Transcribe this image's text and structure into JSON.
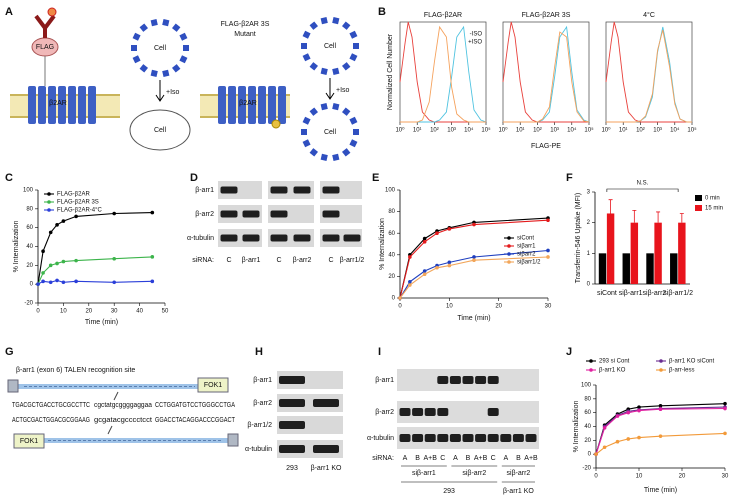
{
  "panel_labels": [
    "A",
    "B",
    "C",
    "D",
    "E",
    "F",
    "G",
    "H",
    "I",
    "J"
  ],
  "diagram_a": {
    "flag": "FLAG",
    "receptor": "β2AR",
    "cell_1": "Cell",
    "iso_1": "+Iso",
    "cell_2": "Cell",
    "mutant_title": [
      "FLAG-β2AR 3S",
      "Mutant"
    ],
    "mutant_receptor": "β2AR",
    "cell_3": "Cell",
    "iso_2": "+Iso",
    "cell_4": "Cell"
  },
  "blot_d": {
    "rows": [
      "β-arr1",
      "β-arr2",
      "α-tubulin"
    ],
    "sirna": "siRNA:",
    "lanes": [
      "C",
      "β-arr1",
      "C",
      "β-arr2",
      "C",
      "β-arr1/2"
    ]
  },
  "diagram_g": {
    "title": "β-arr1 (exon 6) TALEN recognition site",
    "top_strand": [
      "TGACGCTGACCTGCGCCTTC",
      "cgctatgcggggaggaa",
      "CCTGGATGTCCTGGGCCTGA"
    ],
    "bottom_strand": [
      "ACTGCGACTGGACGCGGAAG",
      "gcgatacgcccctcct",
      "GGACCTACAGGACCCGGACT"
    ],
    "nuclease": [
      "FOK1",
      "FOK1"
    ]
  },
  "blot_h": {
    "rows": [
      "β-arr1",
      "β-arr2",
      "β-arr1/2",
      "α-tubulin"
    ],
    "lanes": [
      "293",
      "β-arr1 KO"
    ]
  },
  "blot_i": {
    "rows": [
      "β-arr1",
      "β-arr2",
      "α-tubulin"
    ],
    "sirna": "siRNA:",
    "lanes": [
      "A",
      "B",
      "A+B",
      "C",
      "A",
      "B",
      "A+B",
      "C",
      "A",
      "B",
      "A+B"
    ],
    "groups": [
      "siβ-arr1",
      "siβ-arr2",
      "siβ-arr2"
    ],
    "cells": [
      "293",
      "β-arr1 KO"
    ]
  },
  "chart_data": [
    {
      "type": "line",
      "title": "FLAG-β2AR",
      "ylabel": "Normalized Cell Number",
      "xlog": true,
      "frame": true,
      "legend": "upper right",
      "x": [
        1,
        2,
        3,
        5,
        10,
        20,
        50,
        100,
        200,
        500,
        1000,
        2000,
        5000,
        10000,
        20000,
        50000,
        100000
      ],
      "xlim": [
        1,
        100000
      ],
      "ylim": [
        0,
        100
      ],
      "xticks": [
        {
          "value": 1,
          "label": "10⁰"
        },
        {
          "value": 10,
          "label": "10¹"
        },
        {
          "value": 100,
          "label": "10²"
        },
        {
          "value": 1000,
          "label": "10³"
        },
        {
          "value": 10000,
          "label": "10⁴"
        },
        {
          "value": 100000,
          "label": "10⁵"
        }
      ],
      "series": [
        {
          "color": "#e8413c",
          "values": [
            40,
            80,
            100,
            85,
            40,
            10,
            2,
            0,
            0,
            0,
            0,
            0,
            0,
            0,
            0,
            0,
            0
          ]
        },
        {
          "name": "-ISO",
          "color": "#4fc3e0",
          "values": [
            0,
            0,
            0,
            0,
            0,
            0,
            0,
            0,
            2,
            10,
            45,
            85,
            95,
            50,
            12,
            2,
            0
          ]
        },
        {
          "name": "+ISO",
          "color": "#f5a25d",
          "values": [
            0,
            0,
            0,
            0,
            0,
            2,
            20,
            60,
            95,
            85,
            35,
            8,
            2,
            0,
            0,
            0,
            0
          ]
        }
      ]
    },
    {
      "type": "line",
      "title": "FLAG-β2AR 3S",
      "xlabel": "FLAG-PE",
      "xlog": true,
      "frame": true,
      "x": [
        1,
        2,
        3,
        5,
        10,
        20,
        50,
        100,
        200,
        500,
        1000,
        2000,
        5000,
        10000,
        20000,
        50000,
        100000
      ],
      "xlim": [
        1,
        100000
      ],
      "ylim": [
        0,
        100
      ],
      "xticks": [
        {
          "value": 1,
          "label": "10⁰"
        },
        {
          "value": 10,
          "label": "10¹"
        },
        {
          "value": 100,
          "label": "10²"
        },
        {
          "value": 1000,
          "label": "10³"
        },
        {
          "value": 10000,
          "label": "10⁴"
        },
        {
          "value": 100000,
          "label": "10⁵"
        }
      ],
      "series": [
        {
          "color": "#e8413c",
          "values": [
            40,
            80,
            100,
            85,
            40,
            10,
            2,
            0,
            0,
            0,
            0,
            0,
            0,
            0,
            0,
            0,
            0
          ]
        },
        {
          "color": "#4fc3e0",
          "values": [
            0,
            0,
            0,
            0,
            0,
            0,
            0,
            0,
            2,
            10,
            45,
            85,
            95,
            50,
            12,
            2,
            0
          ]
        },
        {
          "color": "#f5a25d",
          "values": [
            0,
            0,
            0,
            0,
            0,
            0,
            0,
            0,
            3,
            15,
            55,
            90,
            85,
            40,
            10,
            1,
            0
          ]
        }
      ]
    },
    {
      "type": "line",
      "title": "4°C",
      "xlog": true,
      "frame": true,
      "x": [
        1,
        2,
        3,
        5,
        10,
        20,
        50,
        100,
        200,
        500,
        1000,
        2000,
        5000,
        10000,
        20000,
        50000,
        100000
      ],
      "xlim": [
        1,
        100000
      ],
      "ylim": [
        0,
        100
      ],
      "xticks": [
        {
          "value": 1,
          "label": "10⁰"
        },
        {
          "value": 10,
          "label": "10¹"
        },
        {
          "value": 100,
          "label": "10²"
        },
        {
          "value": 1000,
          "label": "10³"
        },
        {
          "value": 10000,
          "label": "10⁴"
        },
        {
          "value": 100000,
          "label": "10⁵"
        }
      ],
      "series": [
        {
          "color": "#e8413c",
          "values": [
            40,
            80,
            100,
            85,
            40,
            10,
            2,
            0,
            0,
            0,
            0,
            0,
            0,
            0,
            0,
            0,
            0
          ]
        },
        {
          "color": "#4fc3e0",
          "values": [
            0,
            0,
            0,
            0,
            0,
            0,
            0,
            1,
            5,
            25,
            70,
            95,
            60,
            20,
            3,
            0,
            0
          ]
        },
        {
          "color": "#f5a25d",
          "values": [
            0,
            0,
            0,
            0,
            0,
            0,
            0,
            1,
            6,
            28,
            72,
            92,
            55,
            18,
            3,
            0,
            0
          ]
        }
      ]
    },
    {
      "type": "line",
      "xlabel": "Time (min)",
      "ylabel": "% Internalization",
      "legend": "upper left",
      "markers": true,
      "x": [
        0,
        2,
        5,
        7.5,
        10,
        15,
        30,
        45
      ],
      "xlim": [
        0,
        50
      ],
      "xticks": [
        0,
        10,
        20,
        30,
        40,
        50
      ],
      "ylim": [
        -20,
        100
      ],
      "yticks": [
        -20,
        0,
        20,
        40,
        60,
        80,
        100
      ],
      "series": [
        {
          "name": "FLAG-β2AR",
          "color": "#000000",
          "values": [
            0,
            35,
            55,
            63,
            67,
            72,
            75,
            76
          ]
        },
        {
          "name": "FLAG-β2AR 3S",
          "color": "#3cb44b",
          "values": [
            0,
            12,
            20,
            22,
            24,
            25,
            27,
            29
          ]
        },
        {
          "name": "FLAG-β2AR-4°C",
          "color": "#2b3fd9",
          "values": [
            0,
            3,
            2,
            4,
            2,
            3,
            2,
            3
          ]
        }
      ]
    },
    {
      "type": "line",
      "xlabel": "Time (min)",
      "ylabel": "% Internalization",
      "legend": "lower right",
      "markers": true,
      "x": [
        0,
        2,
        5,
        7.5,
        10,
        15,
        30
      ],
      "xlim": [
        0,
        30
      ],
      "xticks": [
        0,
        10,
        20,
        30
      ],
      "ylim": [
        0,
        100
      ],
      "yticks": [
        0,
        20,
        40,
        60,
        80,
        100
      ],
      "series": [
        {
          "name": "siCont",
          "color": "#000000",
          "values": [
            0,
            40,
            55,
            62,
            65,
            70,
            74
          ]
        },
        {
          "name": "siβarr1",
          "color": "#e31a1c",
          "values": [
            0,
            38,
            52,
            60,
            64,
            68,
            72
          ]
        },
        {
          "name": "siβarr2",
          "color": "#1f3fbf",
          "values": [
            0,
            15,
            25,
            30,
            33,
            38,
            44
          ]
        },
        {
          "name": "siβarr1/2",
          "color": "#f2a65a",
          "values": [
            0,
            12,
            22,
            28,
            30,
            35,
            38
          ]
        }
      ]
    },
    {
      "type": "bar",
      "ylabel": "Transferrin-546 Uptake (MFI)",
      "legend": "right",
      "annotation": "N.S.",
      "categories": [
        "siCont",
        "siβ-arr1",
        "siβ-arr2",
        "siβ-arr1/2"
      ],
      "ylim": [
        0,
        3
      ],
      "yticks": [
        0,
        1,
        2,
        3
      ],
      "series": [
        {
          "name": "0 min",
          "color": "#000000",
          "values": [
            1,
            1,
            1,
            1
          ]
        },
        {
          "name": "15 min",
          "color": "#e8141c",
          "values": [
            2.3,
            2.0,
            2.0,
            2.0
          ],
          "errors": [
            0.45,
            0.4,
            0.35,
            0.3
          ]
        }
      ]
    },
    {
      "type": "line",
      "xlabel": "Time (min)",
      "ylabel": "% Internalization",
      "legend": "top",
      "markers": true,
      "x": [
        0,
        2,
        5,
        7.5,
        10,
        15,
        30
      ],
      "xlim": [
        0,
        30
      ],
      "xticks": [
        0,
        10,
        20,
        30
      ],
      "ylim": [
        -20,
        100
      ],
      "yticks": [
        -20,
        0,
        20,
        40,
        60,
        80,
        100
      ],
      "series": [
        {
          "name": "293 si Cont",
          "color": "#000000",
          "values": [
            0,
            42,
            58,
            65,
            68,
            70,
            73
          ]
        },
        {
          "name": "β-arr1 KO siCont",
          "color": "#6a2c91",
          "values": [
            0,
            40,
            56,
            62,
            64,
            66,
            68
          ]
        },
        {
          "name": "β-arr1 KO",
          "color": "#e020a0",
          "values": [
            0,
            38,
            55,
            60,
            63,
            65,
            66
          ]
        },
        {
          "name": "β-arr-less",
          "color": "#f29a3a",
          "values": [
            0,
            10,
            18,
            22,
            24,
            26,
            30
          ]
        }
      ]
    }
  ]
}
